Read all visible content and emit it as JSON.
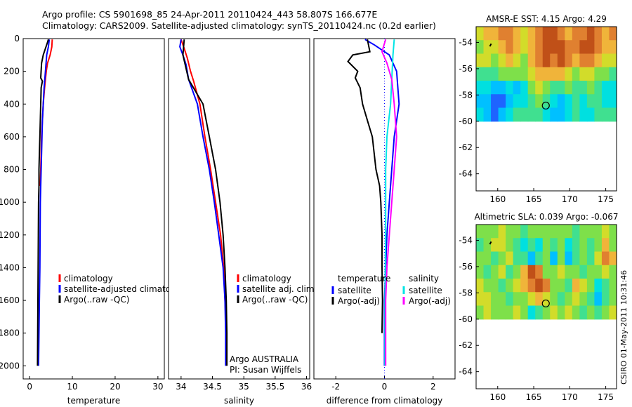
{
  "title_line1": "Argo profile: CS 5901698_85 24-Apr-2011 20110424_443 58.807S 166.677E",
  "title_line2": "Climatology: CARS2009. Satellite-adjusted climatology: synTS_20110424.nc (0.2d earlier)",
  "credit": "CSIRO 01-May-2011 10:31:46",
  "colors": {
    "climatology": "#ff0000",
    "satellite": "#0000ff",
    "argo": "#000000",
    "sat_salinity": "#00e5e5",
    "argo_adj_salinity": "#ff00ff"
  },
  "chart_data": [
    {
      "type": "line",
      "xlabel": "temperature",
      "xlim": [
        -1.5,
        31.5
      ],
      "xticks": [
        0,
        10,
        20,
        30
      ],
      "ylim": [
        0,
        2080
      ],
      "yticks": [
        0,
        200,
        400,
        600,
        800,
        1000,
        1200,
        1400,
        1600,
        1800,
        2000
      ],
      "y_reversed": true,
      "legend": [
        "climatology",
        "satellite-adjusted climatology",
        "Argo(..raw -QC)"
      ],
      "legend_colors": [
        "#ff0000",
        "#0000ff",
        "#000000"
      ],
      "series": [
        {
          "name": "climatology",
          "color": "#ff0000",
          "points": [
            [
              5.3,
              5
            ],
            [
              5.2,
              50
            ],
            [
              4.8,
              100
            ],
            [
              4.2,
              150
            ],
            [
              3.9,
              200
            ],
            [
              3.5,
              300
            ],
            [
              3.2,
              400
            ],
            [
              3.0,
              500
            ],
            [
              2.8,
              600
            ],
            [
              2.6,
              800
            ],
            [
              2.5,
              900
            ]
          ]
        },
        {
          "name": "satellite-adjusted climatology",
          "color": "#0000ff",
          "points": [
            [
              4.6,
              5
            ],
            [
              4.4,
              50
            ],
            [
              4.0,
              100
            ],
            [
              3.7,
              200
            ],
            [
              3.4,
              300
            ],
            [
              3.2,
              400
            ],
            [
              3.0,
              500
            ],
            [
              2.9,
              600
            ],
            [
              2.8,
              700
            ],
            [
              2.7,
              800
            ],
            [
              2.6,
              900
            ],
            [
              2.5,
              1000
            ],
            [
              2.45,
              1200
            ],
            [
              2.4,
              1400
            ],
            [
              2.3,
              1600
            ],
            [
              2.2,
              1800
            ],
            [
              2.1,
              2000
            ]
          ]
        },
        {
          "name": "Argo(..raw -QC)",
          "color": "#000000",
          "points": [
            [
              4.4,
              5
            ],
            [
              4.1,
              30
            ],
            [
              3.2,
              100
            ],
            [
              2.8,
              150
            ],
            [
              2.6,
              240
            ],
            [
              3.0,
              260
            ],
            [
              2.7,
              300
            ],
            [
              2.6,
              400
            ],
            [
              2.5,
              500
            ],
            [
              2.4,
              600
            ],
            [
              2.3,
              700
            ],
            [
              2.2,
              800
            ],
            [
              2.2,
              900
            ],
            [
              2.1,
              1000
            ],
            [
              2.05,
              1200
            ],
            [
              2.0,
              1400
            ],
            [
              1.95,
              1600
            ],
            [
              1.9,
              1800
            ],
            [
              1.85,
              2000
            ]
          ]
        }
      ]
    },
    {
      "type": "line",
      "xlabel": "salinity",
      "xlim": [
        33.8,
        36.05
      ],
      "xticks": [
        34,
        34.5,
        35,
        35.5,
        36
      ],
      "ylim": [
        0,
        2080
      ],
      "y_reversed": true,
      "legend": [
        "climatology",
        "satellite adj. clim.",
        "Argo(..raw -QC)"
      ],
      "legend_colors": [
        "#ff0000",
        "#0000ff",
        "#000000"
      ],
      "annotation": [
        "Argo AUSTRALIA",
        "PI: Susan Wijffels"
      ],
      "series": [
        {
          "name": "climatology",
          "color": "#ff0000",
          "points": [
            [
              34.0,
              5
            ],
            [
              34.05,
              60
            ],
            [
              34.1,
              120
            ],
            [
              34.15,
              200
            ],
            [
              34.2,
              260
            ],
            [
              34.3,
              400
            ],
            [
              34.38,
              600
            ],
            [
              34.47,
              800
            ],
            [
              34.55,
              1000
            ],
            [
              34.63,
              1200
            ],
            [
              34.68,
              1400
            ],
            [
              34.7,
              1600
            ],
            [
              34.72,
              1800
            ],
            [
              34.72,
              2000
            ]
          ]
        },
        {
          "name": "satellite adj. clim.",
          "color": "#0000ff",
          "points": [
            [
              34.0,
              5
            ],
            [
              33.98,
              50
            ],
            [
              34.03,
              100
            ],
            [
              34.08,
              160
            ],
            [
              34.12,
              250
            ],
            [
              34.26,
              400
            ],
            [
              34.35,
              600
            ],
            [
              34.45,
              800
            ],
            [
              34.53,
              1000
            ],
            [
              34.6,
              1200
            ],
            [
              34.67,
              1400
            ],
            [
              34.7,
              1600
            ],
            [
              34.71,
              1800
            ],
            [
              34.71,
              2000
            ]
          ]
        },
        {
          "name": "Argo(..raw -QC)",
          "color": "#000000",
          "points": [
            [
              34.05,
              5
            ],
            [
              34.03,
              100
            ],
            [
              34.12,
              250
            ],
            [
              34.35,
              400
            ],
            [
              34.45,
              600
            ],
            [
              34.55,
              800
            ],
            [
              34.62,
              1000
            ],
            [
              34.67,
              1200
            ],
            [
              34.7,
              1400
            ],
            [
              34.72,
              1600
            ],
            [
              34.73,
              1800
            ],
            [
              34.73,
              2000
            ]
          ]
        }
      ]
    },
    {
      "type": "line",
      "xlabel": "difference from climatology",
      "xlim": [
        -2.9,
        2.9
      ],
      "xticks": [
        -2,
        0,
        2
      ],
      "ylim": [
        0,
        2080
      ],
      "y_reversed": true,
      "legend_temperature": [
        "temperature",
        "satellite",
        "Argo(-adj)"
      ],
      "legend_salinity": [
        "salinity",
        "satellite",
        "Argo(-adj)"
      ],
      "series": [
        {
          "name": "satellite",
          "color": "#0000ff",
          "points": [
            [
              -0.8,
              5
            ],
            [
              -0.4,
              40
            ],
            [
              0.2,
              100
            ],
            [
              0.5,
              200
            ],
            [
              0.6,
              400
            ],
            [
              0.4,
              600
            ],
            [
              0.3,
              800
            ],
            [
              0.2,
              1000
            ],
            [
              0.1,
              1200
            ],
            [
              0.05,
              1400
            ],
            [
              0.0,
              1600
            ],
            [
              0.0,
              1800
            ],
            [
              0.0,
              2000
            ]
          ]
        },
        {
          "name": "Argo(-adj)",
          "color": "#000000",
          "points": [
            [
              -0.7,
              5
            ],
            [
              -0.6,
              80
            ],
            [
              -1.3,
              100
            ],
            [
              -1.5,
              140
            ],
            [
              -1.1,
              200
            ],
            [
              -1.2,
              240
            ],
            [
              -1.0,
              300
            ],
            [
              -0.9,
              400
            ],
            [
              -0.7,
              500
            ],
            [
              -0.5,
              600
            ],
            [
              -0.35,
              800
            ],
            [
              -0.2,
              900
            ],
            [
              -0.15,
              1000
            ],
            [
              -0.1,
              1200
            ],
            [
              -0.1,
              1400
            ],
            [
              -0.08,
              1600
            ],
            [
              -0.1,
              1800
            ]
          ]
        },
        {
          "name": "satellite",
          "color": "#00e5e5",
          "points": [
            [
              0.4,
              5
            ],
            [
              0.35,
              100
            ],
            [
              0.25,
              400
            ],
            [
              0.1,
              600
            ],
            [
              0.05,
              800
            ],
            [
              0.05,
              1200
            ],
            [
              0.02,
              1600
            ],
            [
              0.02,
              2000
            ]
          ]
        },
        {
          "name": "Argo(-adj)",
          "color": "#ff00ff",
          "points": [
            [
              0.05,
              5
            ],
            [
              -0.1,
              80
            ],
            [
              0.1,
              150
            ],
            [
              0.3,
              250
            ],
            [
              0.4,
              400
            ],
            [
              0.5,
              600
            ],
            [
              0.4,
              800
            ],
            [
              0.3,
              1000
            ],
            [
              0.2,
              1200
            ],
            [
              0.1,
              1400
            ],
            [
              0.05,
              1600
            ],
            [
              0.05,
              1800
            ],
            [
              0.05,
              2000
            ]
          ]
        }
      ]
    },
    {
      "type": "heatmap",
      "title": "AMSR-E SST: 4.15 Argo: 4.29",
      "xlim": [
        157,
        176.5
      ],
      "ylim": [
        -65.3,
        -52.8
      ],
      "xticks": [
        160,
        165,
        170,
        175
      ],
      "yticks": [
        -54,
        -56,
        -58,
        -60,
        -62,
        -64
      ],
      "data_lat_range": [
        -60,
        -52.8
      ],
      "argo_position": [
        166.677,
        -58.807
      ],
      "palette": [
        "#1e64ff",
        "#00c0ff",
        "#00e0e0",
        "#40e090",
        "#7ee04a",
        "#d2dc2a",
        "#f0b43a",
        "#e08030",
        "#c05018"
      ],
      "grid": [
        [
          5,
          6,
          6,
          7,
          7,
          6,
          5,
          6,
          7,
          8,
          8,
          7,
          6,
          7,
          7,
          8,
          7,
          6,
          7
        ],
        [
          4,
          5,
          5,
          6,
          7,
          6,
          5,
          6,
          7,
          8,
          8,
          8,
          7,
          7,
          8,
          8,
          7,
          6,
          6
        ],
        [
          5,
          5,
          4,
          5,
          6,
          5,
          4,
          6,
          7,
          8,
          7,
          8,
          7,
          6,
          7,
          7,
          6,
          5,
          5
        ],
        [
          3,
          3,
          3,
          4,
          4,
          4,
          4,
          5,
          6,
          6,
          6,
          6,
          5,
          4,
          5,
          5,
          4,
          4,
          3
        ],
        [
          2,
          2,
          1,
          1,
          2,
          1,
          2,
          4,
          5,
          4,
          3,
          3,
          4,
          3,
          3,
          4,
          3,
          2,
          2
        ],
        [
          1,
          1,
          0,
          0,
          1,
          2,
          2,
          3,
          4,
          3,
          2,
          1,
          2,
          3,
          2,
          3,
          3,
          2,
          2
        ],
        [
          2,
          1,
          0,
          1,
          2,
          3,
          3,
          3,
          3,
          2,
          1,
          1,
          2,
          3,
          2,
          2,
          3,
          3,
          3
        ]
      ]
    },
    {
      "type": "heatmap",
      "title": "Altimetric SLA: 0.039 Argo: -0.067",
      "xlim": [
        157,
        176.5
      ],
      "ylim": [
        -65.3,
        -52.8
      ],
      "xticks": [
        160,
        165,
        170,
        175
      ],
      "yticks": [
        -54,
        -56,
        -58,
        -60,
        -62,
        -64
      ],
      "data_lat_range": [
        -60,
        -52.8
      ],
      "argo_position": [
        166.677,
        -58.807
      ],
      "palette": [
        "#1e64ff",
        "#00c0ff",
        "#00e0e0",
        "#40e090",
        "#7ee04a",
        "#d2dc2a",
        "#f0b43a",
        "#e08030",
        "#c05018"
      ],
      "grid": [
        [
          4,
          4,
          4,
          5,
          4,
          4,
          3,
          4,
          4,
          4,
          4,
          4,
          4,
          3,
          4,
          4,
          4,
          5,
          4
        ],
        [
          3,
          4,
          5,
          5,
          4,
          3,
          2,
          3,
          2,
          4,
          3,
          4,
          2,
          3,
          4,
          3,
          4,
          6,
          4
        ],
        [
          4,
          4,
          3,
          4,
          5,
          3,
          3,
          1,
          3,
          4,
          1,
          4,
          1,
          3,
          4,
          3,
          5,
          7,
          6
        ],
        [
          4,
          3,
          4,
          5,
          3,
          4,
          6,
          8,
          7,
          4,
          4,
          5,
          4,
          4,
          3,
          4,
          4,
          5,
          4
        ],
        [
          5,
          4,
          4,
          3,
          4,
          5,
          6,
          7,
          8,
          7,
          4,
          4,
          3,
          6,
          5,
          4,
          2,
          3,
          4
        ],
        [
          5,
          5,
          4,
          4,
          3,
          4,
          4,
          5,
          6,
          5,
          4,
          3,
          4,
          5,
          4,
          3,
          1,
          3,
          4
        ],
        [
          4,
          5,
          4,
          4,
          4,
          5,
          4,
          2,
          3,
          4,
          5,
          4,
          5,
          4,
          3,
          4,
          3,
          4,
          5
        ]
      ]
    }
  ]
}
